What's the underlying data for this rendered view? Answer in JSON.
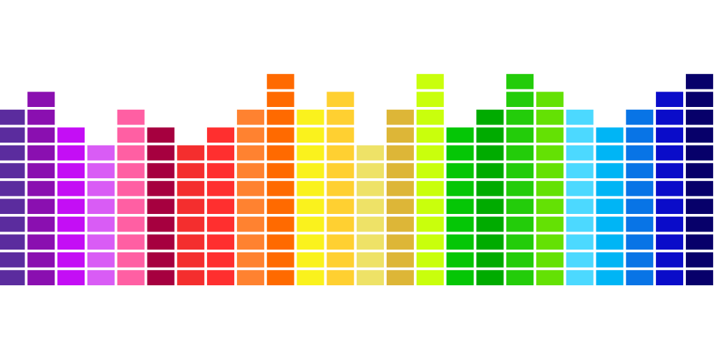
{
  "equalizer": {
    "max_segments": 12,
    "columns": [
      {
        "color": "#5B2C9E",
        "level": 10
      },
      {
        "color": "#8A0FB0",
        "level": 11
      },
      {
        "color": "#C40EF5",
        "level": 9
      },
      {
        "color": "#D95CF5",
        "level": 8
      },
      {
        "color": "#FF5FA3",
        "level": 10
      },
      {
        "color": "#A6003F",
        "level": 9
      },
      {
        "color": "#F42E2E",
        "level": 8
      },
      {
        "color": "#FF2F2F",
        "level": 9
      },
      {
        "color": "#FF8230",
        "level": 10
      },
      {
        "color": "#FF6A00",
        "level": 12
      },
      {
        "color": "#FAF21D",
        "level": 10
      },
      {
        "color": "#FFD031",
        "level": 11
      },
      {
        "color": "#EEE267",
        "level": 8
      },
      {
        "color": "#DDB637",
        "level": 10
      },
      {
        "color": "#C9FF0C",
        "level": 12
      },
      {
        "color": "#05C606",
        "level": 9
      },
      {
        "color": "#00AB00",
        "level": 10
      },
      {
        "color": "#23CC0A",
        "level": 12
      },
      {
        "color": "#64E104",
        "level": 11
      },
      {
        "color": "#4CD9FF",
        "level": 10
      },
      {
        "color": "#00B5F5",
        "level": 9
      },
      {
        "color": "#0874E6",
        "level": 10
      },
      {
        "color": "#0A0CC9",
        "level": 11
      },
      {
        "color": "#07006A",
        "level": 12
      }
    ]
  }
}
